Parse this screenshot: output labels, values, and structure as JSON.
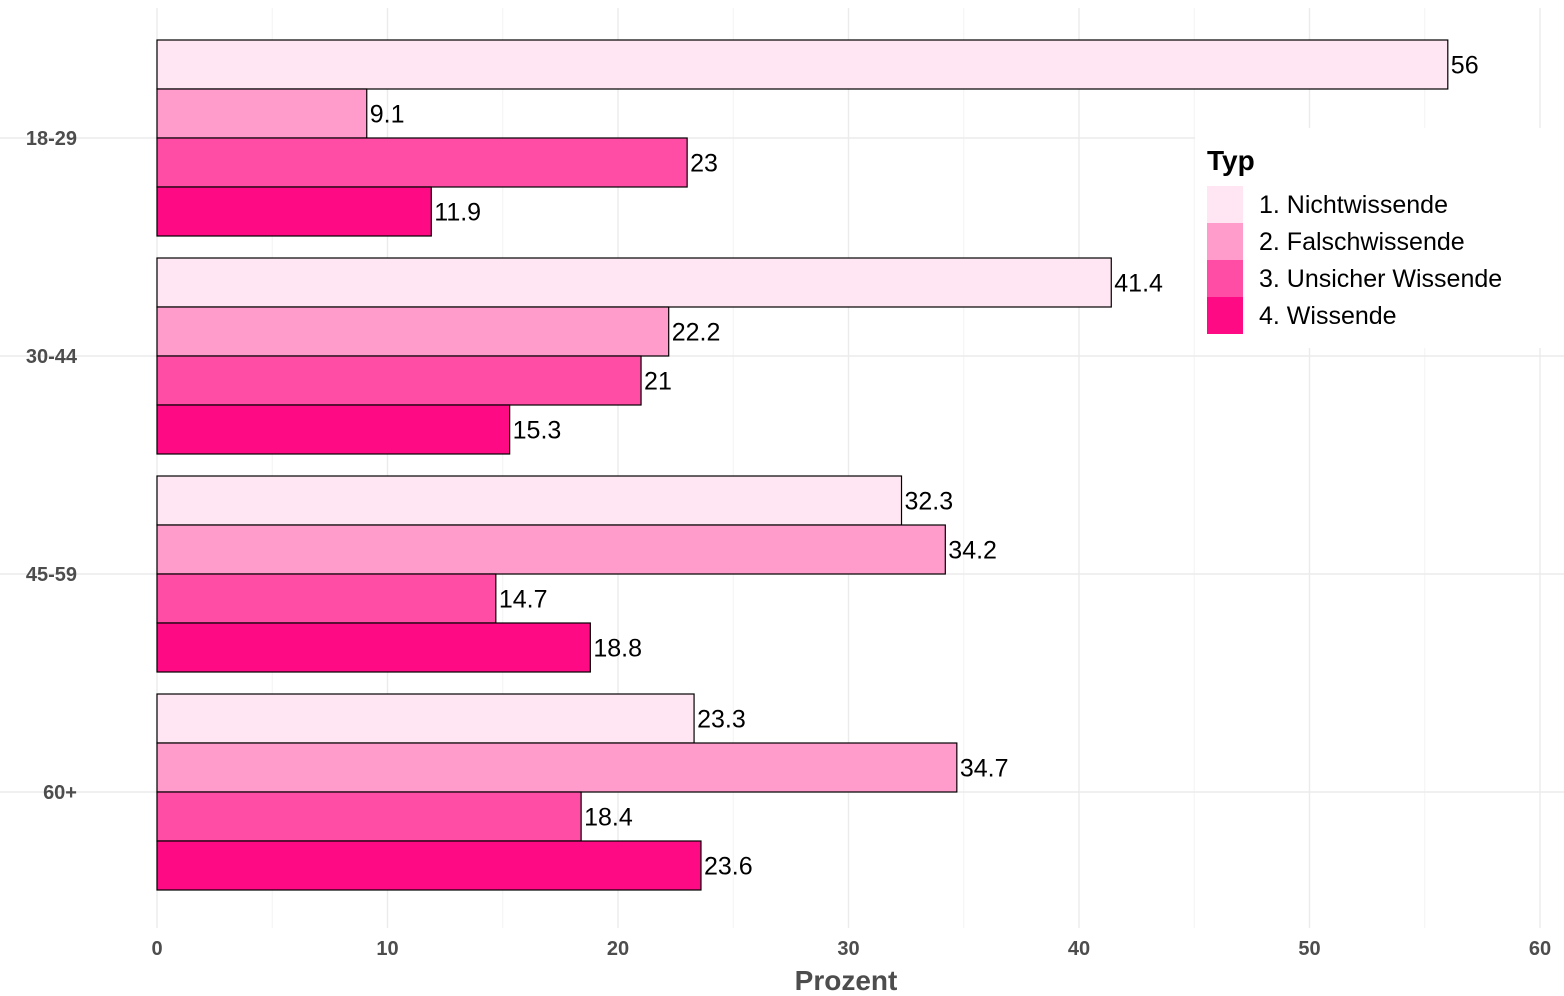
{
  "chart_data": {
    "type": "bar",
    "orientation": "horizontal",
    "categories": [
      "18-29",
      "30-44",
      "45-59",
      "60+"
    ],
    "series": [
      {
        "name": "1. Nichtwissende",
        "color": "#ffe6f2",
        "values": [
          56,
          41.4,
          32.3,
          23.3
        ]
      },
      {
        "name": "2. Falschwissende",
        "color": "#ff9ccb",
        "values": [
          9.1,
          22.2,
          34.2,
          34.7
        ]
      },
      {
        "name": "3. Unsicher Wissende",
        "color": "#ff4da6",
        "values": [
          23,
          21,
          14.7,
          18.4
        ]
      },
      {
        "name": "4. Wissende",
        "color": "#ff0a85",
        "values": [
          11.9,
          15.3,
          18.8,
          23.6
        ]
      }
    ],
    "data_labels": [
      [
        "56",
        "9.1",
        "23",
        "11.9"
      ],
      [
        "41.4",
        "22.2",
        "21",
        "15.3"
      ],
      [
        "32.3",
        "34.2",
        "14.7",
        "18.8"
      ],
      [
        "23.3",
        "34.7",
        "18.4",
        "23.6"
      ]
    ],
    "xlabel": "Prozent",
    "ylabel": "",
    "xlim": [
      0,
      60
    ],
    "x_ticks": [
      "0",
      "10",
      "20",
      "30",
      "40",
      "50",
      "60"
    ],
    "grid": true,
    "legend": {
      "title": "Typ",
      "position": "right"
    }
  }
}
